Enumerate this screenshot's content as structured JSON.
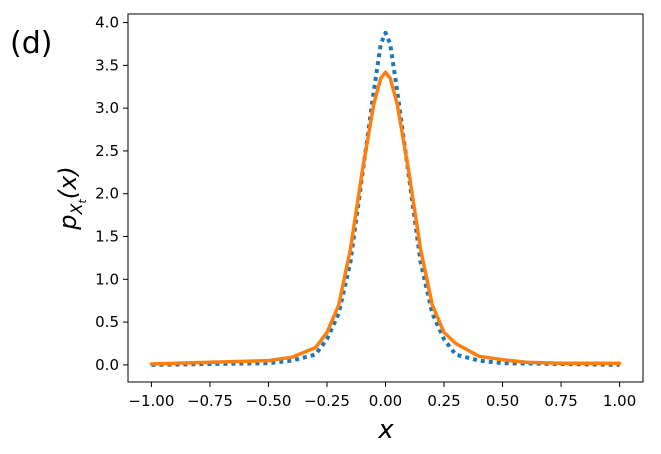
{
  "panel_label": "(d)",
  "chart_data": {
    "type": "line",
    "title": "",
    "xlabel": "x",
    "ylabel": "p_{X_t}(x)",
    "xlim": [
      -1.1,
      1.1
    ],
    "ylim": [
      -0.2,
      4.1
    ],
    "x_ticks": [
      -1.0,
      -0.75,
      -0.5,
      -0.25,
      0.0,
      0.25,
      0.5,
      0.75,
      1.0
    ],
    "x_tick_labels": [
      "−1.00",
      "−0.75",
      "−0.50",
      "−0.25",
      "0.00",
      "0.25",
      "0.50",
      "0.75",
      "1.00"
    ],
    "y_ticks": [
      0.0,
      0.5,
      1.0,
      1.5,
      2.0,
      2.5,
      3.0,
      3.5,
      4.0
    ],
    "y_tick_labels": [
      "0.0",
      "0.5",
      "1.0",
      "1.5",
      "2.0",
      "2.5",
      "3.0",
      "3.5",
      "4.0"
    ],
    "grid": false,
    "legend": "none",
    "series": [
      {
        "color": "#1f77b4",
        "style": "dotted",
        "x": [
          -1.0,
          -0.75,
          -0.5,
          -0.4,
          -0.3,
          -0.25,
          -0.2,
          -0.15,
          -0.1,
          -0.05,
          -0.02,
          0.0,
          0.02,
          0.05,
          0.1,
          0.15,
          0.2,
          0.25,
          0.3,
          0.4,
          0.5,
          0.75,
          1.0
        ],
        "y": [
          0.0,
          0.01,
          0.02,
          0.05,
          0.12,
          0.3,
          0.6,
          1.2,
          2.2,
          3.2,
          3.75,
          3.88,
          3.75,
          3.2,
          2.2,
          1.2,
          0.6,
          0.3,
          0.12,
          0.05,
          0.02,
          0.01,
          0.0
        ]
      },
      {
        "color": "#ff7f0e",
        "style": "solid",
        "x": [
          -1.0,
          -0.75,
          -0.5,
          -0.4,
          -0.3,
          -0.25,
          -0.2,
          -0.15,
          -0.1,
          -0.05,
          -0.02,
          0.0,
          0.02,
          0.05,
          0.1,
          0.15,
          0.2,
          0.25,
          0.3,
          0.4,
          0.5,
          0.6,
          0.75,
          1.0
        ],
        "y": [
          0.01,
          0.03,
          0.05,
          0.09,
          0.2,
          0.38,
          0.7,
          1.35,
          2.25,
          3.05,
          3.35,
          3.42,
          3.35,
          3.05,
          2.25,
          1.35,
          0.7,
          0.38,
          0.25,
          0.1,
          0.06,
          0.03,
          0.02,
          0.02
        ]
      }
    ]
  }
}
